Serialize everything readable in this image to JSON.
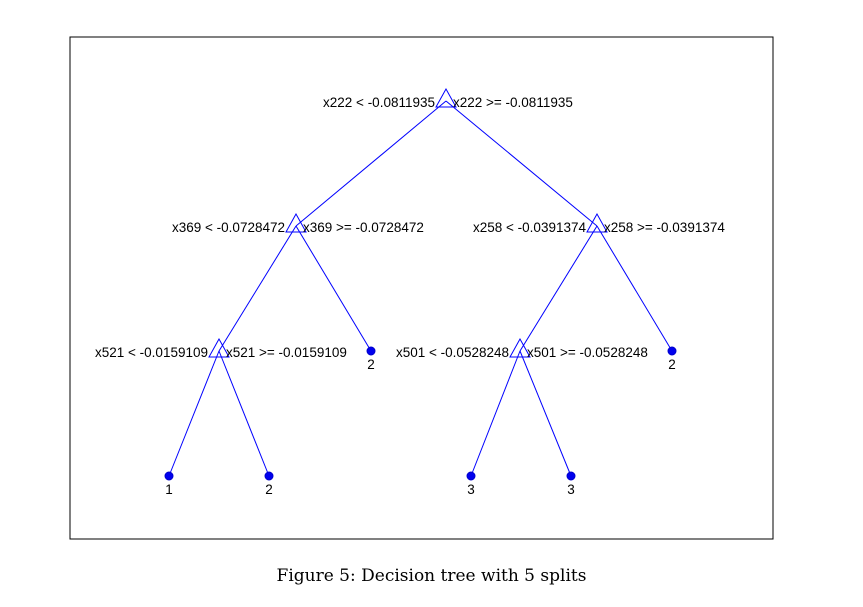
{
  "caption": "Figure 5: Decision tree with 5 splits",
  "colors": {
    "edge": "#0000ff",
    "leaf": "#0000ee",
    "text": "#000000",
    "frame": "#000000"
  },
  "tree": {
    "splits": [
      {
        "id": "n1",
        "left_label": "x222 < -0.0811935",
        "right_label": "x222 >= -0.0811935"
      },
      {
        "id": "n2",
        "left_label": "x369 < -0.0728472",
        "right_label": "x369 >= -0.0728472"
      },
      {
        "id": "n3",
        "left_label": "x258 < -0.0391374",
        "right_label": "x258 >= -0.0391374"
      },
      {
        "id": "n4",
        "left_label": "x521 < -0.0159109",
        "right_label": "x521 >= -0.0159109"
      },
      {
        "id": "n5",
        "left_label": "x501 < -0.0528248",
        "right_label": "x501 >= -0.0528248"
      }
    ],
    "leaves": [
      {
        "id": "l1",
        "label": "2"
      },
      {
        "id": "l2",
        "label": "2"
      },
      {
        "id": "l3",
        "label": "1"
      },
      {
        "id": "l4",
        "label": "2"
      },
      {
        "id": "l5",
        "label": "3"
      },
      {
        "id": "l6",
        "label": "3"
      }
    ],
    "edges": [
      {
        "from": "n1",
        "to": "n2"
      },
      {
        "from": "n1",
        "to": "n3"
      },
      {
        "from": "n2",
        "to": "n4"
      },
      {
        "from": "n2",
        "to": "l1"
      },
      {
        "from": "n3",
        "to": "n5"
      },
      {
        "from": "n3",
        "to": "l2"
      },
      {
        "from": "n4",
        "to": "l3"
      },
      {
        "from": "n4",
        "to": "l4"
      },
      {
        "from": "n5",
        "to": "l5"
      },
      {
        "from": "n5",
        "to": "l6"
      }
    ]
  }
}
